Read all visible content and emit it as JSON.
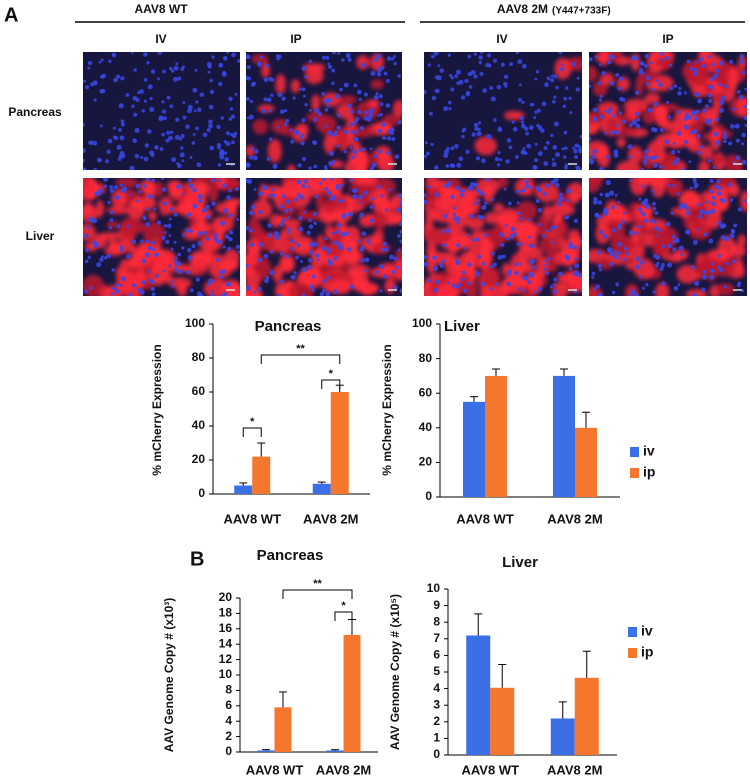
{
  "figure": {
    "panel_a": "A",
    "panel_b": "B",
    "group_labels": [
      "AAV8 WT",
      "AAV8 2M"
    ],
    "group_note": "(Y447+733F)",
    "route_labels": [
      "IV",
      "IP",
      "IV",
      "IP"
    ],
    "row_labels": [
      "Pancreas",
      "Liver"
    ]
  },
  "chart_data": [
    {
      "type": "bar",
      "title": "Pancreas",
      "y_label": "% mCherry Expression",
      "categories": [
        "AAV8 WT",
        "AAV8 2M"
      ],
      "series": [
        {
          "color": "#3a6fe6",
          "values": [
            5,
            6
          ],
          "errors": [
            1.5,
            1
          ]
        },
        {
          "color": "#f5772e",
          "values": [
            22,
            60
          ],
          "errors": [
            8,
            4
          ]
        }
      ],
      "ylim": [
        0,
        100
      ],
      "yticks": [
        0,
        20,
        40,
        60,
        80,
        100
      ],
      "annotations": [
        "*",
        "**",
        "*"
      ]
    },
    {
      "type": "bar",
      "title": "Liver",
      "y_label": "% mCherry Expression",
      "categories": [
        "AAV8 WT",
        "AAV8 2M"
      ],
      "series": [
        {
          "name": "iv",
          "color": "#3a6fe6",
          "values": [
            55,
            70
          ],
          "errors": [
            3,
            4
          ]
        },
        {
          "name": "ip",
          "color": "#f5772e",
          "values": [
            70,
            40
          ],
          "errors": [
            4,
            9
          ]
        }
      ],
      "ylim": [
        0,
        100
      ],
      "yticks": [
        0,
        20,
        40,
        60,
        80,
        100
      ],
      "legend": "right"
    },
    {
      "type": "bar",
      "title": "Pancreas",
      "y_label": "AAV Genome Copy # (x10³)",
      "categories": [
        "AAV8 WT",
        "AAV8 2M"
      ],
      "series": [
        {
          "color": "#3a6fe6",
          "values": [
            0.2,
            0.2
          ],
          "errors": [
            0.1,
            0.1
          ]
        },
        {
          "color": "#f5772e",
          "values": [
            5.8,
            15.2
          ],
          "errors": [
            2,
            2
          ]
        }
      ],
      "ylim": [
        0,
        20
      ],
      "yticks": [
        0,
        2,
        4,
        6,
        8,
        10,
        12,
        14,
        16,
        18,
        20
      ],
      "annotations": [
        "**",
        "*"
      ]
    },
    {
      "type": "bar",
      "title": "Liver",
      "y_label": "AAV Genome Copy # (x10⁵)",
      "categories": [
        "AAV8 WT",
        "AAV8 2M"
      ],
      "series": [
        {
          "name": "iv",
          "color": "#3a6fe6",
          "values": [
            7.2,
            2.2
          ],
          "errors": [
            1.3,
            1
          ]
        },
        {
          "name": "ip",
          "color": "#f5772e",
          "values": [
            4.05,
            4.65
          ],
          "errors": [
            1.4,
            1.6
          ]
        }
      ],
      "ylim": [
        0,
        10
      ],
      "yticks": [
        0,
        1,
        2,
        3,
        4,
        5,
        6,
        7,
        8,
        9,
        10
      ],
      "legend": "right"
    }
  ]
}
